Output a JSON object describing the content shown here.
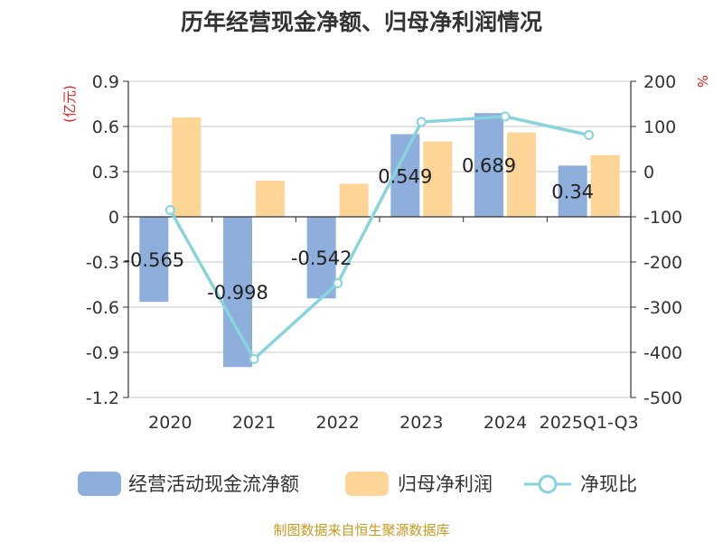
{
  "chart_data": {
    "type": "bar",
    "title": "历年经营现金净额、归母净利润情况",
    "categories": [
      "2020",
      "2021",
      "2022",
      "2023",
      "2024",
      "2025Q1-Q3"
    ],
    "left_axis": {
      "unit": "(亿元)",
      "ylim": [
        -1.2,
        0.9
      ],
      "ticks": [
        "0.9",
        "0.6",
        "0.3",
        "0",
        "-0.3",
        "-0.6",
        "-0.9",
        "-1.2"
      ]
    },
    "right_axis": {
      "unit": "%",
      "ylim": [
        -500,
        200
      ],
      "ticks": [
        "200",
        "100",
        "0",
        "-100",
        "-200",
        "-300",
        "-400",
        "-500"
      ]
    },
    "series": [
      {
        "name": "经营活动现金流净额",
        "type": "bar",
        "axis": "left",
        "color": "#8eaedb",
        "values": [
          -0.565,
          -0.998,
          -0.542,
          0.549,
          0.689,
          0.34
        ],
        "labels": [
          "-0.565",
          "-0.998",
          "-0.542",
          "0.549",
          "0.689",
          "0.34"
        ]
      },
      {
        "name": "归母净利润",
        "type": "bar",
        "axis": "left",
        "color": "#fdd597",
        "values": [
          0.66,
          0.24,
          0.22,
          0.5,
          0.56,
          0.41
        ]
      },
      {
        "name": "净现比",
        "type": "line",
        "axis": "right",
        "color": "#88d4dc",
        "values": [
          -85,
          -415,
          -247,
          110,
          122,
          81
        ]
      }
    ],
    "grid": true,
    "legend": "bottom"
  },
  "footer": {
    "source": "制图数据来自恒生聚源数据库"
  }
}
